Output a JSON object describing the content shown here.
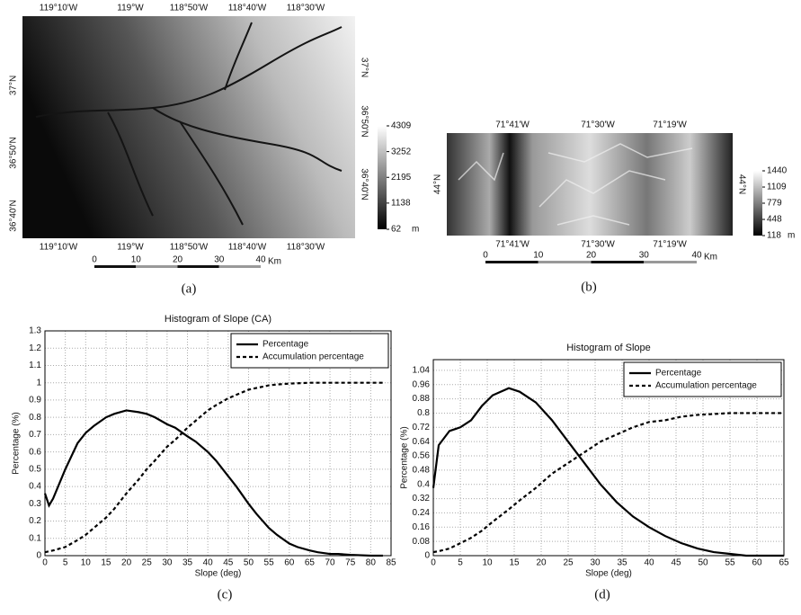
{
  "maps": [
    {
      "top_labels": [
        "119°10'W",
        "119°W",
        "118°50'W",
        "118°40'W",
        "118°30'W"
      ],
      "bottom_labels": [
        "119°10'W",
        "119°W",
        "118°50'W",
        "118°40'W",
        "118°30'W"
      ],
      "left_labels": [
        "37°N",
        "36°50'N",
        "36°40'N"
      ],
      "right_labels": [
        "37°N",
        "36°50'N",
        "36°40'N"
      ],
      "colorbar": {
        "ticks": [
          4309,
          3252,
          2195,
          1138,
          62
        ],
        "unit": "m"
      },
      "scalebar": {
        "ticks": [
          0,
          10,
          20,
          30,
          40
        ],
        "unit": "Km"
      },
      "caption": "(a)"
    },
    {
      "top_labels": [
        "71°41'W",
        "71°30'W",
        "71°19'W"
      ],
      "bottom_labels": [
        "71°41'W",
        "71°30'W",
        "71°19'W"
      ],
      "left_labels": [
        "44°N"
      ],
      "right_labels": [
        "44°N"
      ],
      "colorbar": {
        "ticks": [
          1440,
          1109,
          779,
          448,
          118
        ],
        "unit": "m"
      },
      "scalebar": {
        "ticks": [
          0,
          10,
          20,
          30,
          40
        ],
        "unit": "Km"
      },
      "caption": "(b)"
    }
  ],
  "chart_data": [
    {
      "type": "line",
      "title": "Histogram of Slope (CA)",
      "x_label": "Slope (deg)",
      "y_label": "Percentage (%)",
      "caption": "(c)",
      "x": [
        0,
        1,
        2,
        5,
        8,
        10,
        12,
        15,
        17,
        20,
        23,
        25,
        27,
        30,
        32,
        35,
        37,
        40,
        42,
        45,
        47,
        50,
        52,
        55,
        57,
        60,
        62,
        65,
        67,
        70,
        72,
        75,
        80,
        83
      ],
      "series": [
        {
          "name": "Percentage",
          "color": "#000000",
          "linestyle": "solid",
          "values": [
            0.36,
            0.29,
            0.33,
            0.5,
            0.65,
            0.71,
            0.75,
            0.8,
            0.82,
            0.84,
            0.83,
            0.82,
            0.8,
            0.76,
            0.74,
            0.69,
            0.66,
            0.6,
            0.55,
            0.46,
            0.4,
            0.3,
            0.24,
            0.16,
            0.12,
            0.07,
            0.05,
            0.03,
            0.02,
            0.01,
            0.01,
            0.005,
            0,
            0
          ]
        },
        {
          "name": "Accumulation percentage",
          "color": "#000000",
          "linestyle": "dashed",
          "values": [
            0.02,
            0.025,
            0.03,
            0.05,
            0.09,
            0.12,
            0.16,
            0.22,
            0.27,
            0.36,
            0.44,
            0.5,
            0.55,
            0.63,
            0.67,
            0.74,
            0.78,
            0.84,
            0.87,
            0.91,
            0.93,
            0.96,
            0.97,
            0.985,
            0.99,
            0.995,
            0.997,
            1,
            1,
            1,
            1,
            1,
            1,
            1
          ]
        }
      ],
      "xlim": [
        0,
        85
      ],
      "ylim": [
        0,
        1.3
      ],
      "xticks": [
        0,
        5,
        10,
        15,
        20,
        25,
        30,
        35,
        40,
        45,
        50,
        55,
        60,
        65,
        70,
        75,
        80,
        85
      ],
      "yticks": [
        0,
        0.1,
        0.2,
        0.3,
        0.4,
        0.5,
        0.6,
        0.7,
        0.8,
        0.9,
        1,
        1.1,
        1.2,
        1.3
      ],
      "grid": true,
      "legend": "upper right"
    },
    {
      "type": "line",
      "title": "Histogram of Slope",
      "x_label": "Slope (deg)",
      "y_label": "Percentage (%)",
      "caption": "(d)",
      "x": [
        0,
        1,
        3,
        5,
        7,
        9,
        11,
        14,
        16,
        19,
        22,
        25,
        28,
        31,
        34,
        37,
        40,
        43,
        46,
        49,
        52,
        55,
        58,
        65
      ],
      "series": [
        {
          "name": "Percentage",
          "color": "#000000",
          "linestyle": "solid",
          "values": [
            0.38,
            0.62,
            0.7,
            0.72,
            0.76,
            0.84,
            0.9,
            0.94,
            0.92,
            0.86,
            0.76,
            0.64,
            0.52,
            0.4,
            0.3,
            0.22,
            0.16,
            0.11,
            0.07,
            0.04,
            0.02,
            0.01,
            0,
            0
          ]
        },
        {
          "name": "Accumulation percentage",
          "color": "#000000",
          "linestyle": "dashed",
          "values": [
            0.02,
            0.025,
            0.04,
            0.07,
            0.1,
            0.14,
            0.19,
            0.26,
            0.31,
            0.38,
            0.46,
            0.52,
            0.58,
            0.64,
            0.68,
            0.72,
            0.75,
            0.76,
            0.78,
            0.79,
            0.795,
            0.8,
            0.8,
            0.8
          ]
        }
      ],
      "xlim": [
        0,
        65
      ],
      "ylim": [
        0,
        1.1
      ],
      "xticks": [
        0,
        5,
        10,
        15,
        20,
        25,
        30,
        35,
        40,
        45,
        50,
        55,
        60,
        65
      ],
      "yticks": [
        0,
        0.08,
        0.16,
        0.24,
        0.32,
        0.4,
        0.48,
        0.56,
        0.64,
        0.72,
        0.8,
        0.88,
        0.96,
        1.04
      ],
      "grid": true,
      "legend": "upper right"
    }
  ]
}
